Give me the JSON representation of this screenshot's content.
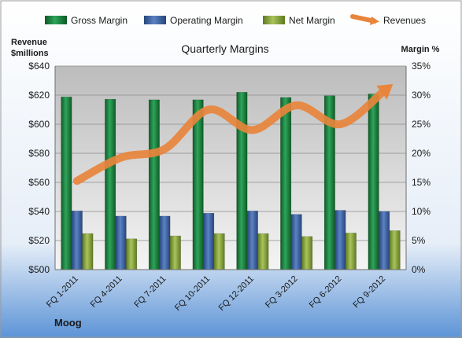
{
  "chart_data": {
    "type": "bar",
    "title": "Quarterly Margins",
    "company": "Moog",
    "left_axis_label": [
      "Revenue",
      "$millions"
    ],
    "right_axis_label": "Margin %",
    "categories": [
      "FQ 1-2011",
      "FQ 4-2011",
      "FQ 7-2011",
      "FQ 10-2011",
      "FQ 12-2011",
      "FQ 3-2012",
      "FQ 6-2012",
      "FQ 9-2012"
    ],
    "left_ticks": [
      "$500",
      "$520",
      "$540",
      "$560",
      "$580",
      "$600",
      "$620",
      "$640"
    ],
    "right_ticks": [
      "0%",
      "5%",
      "10%",
      "15%",
      "20%",
      "25%",
      "30%",
      "35%"
    ],
    "left_range": [
      500,
      640
    ],
    "right_range": [
      0,
      35
    ],
    "legend_position": "top",
    "grid": true,
    "series": [
      {
        "name": "Gross Margin",
        "axis": "right",
        "color": "#1a7a3a",
        "values": [
          29.7,
          29.3,
          29.2,
          29.2,
          30.5,
          29.6,
          29.9,
          30.2
        ]
      },
      {
        "name": "Operating Margin",
        "axis": "right",
        "color": "#3a5fa0",
        "values": [
          10.1,
          9.2,
          9.2,
          9.7,
          10.1,
          9.5,
          10.2,
          10.0
        ]
      },
      {
        "name": "Net Margin",
        "axis": "right",
        "color": "#8aa83c",
        "values": [
          6.2,
          5.3,
          5.8,
          6.2,
          6.2,
          5.7,
          6.3,
          6.7
        ]
      },
      {
        "name": "Revenues",
        "axis": "left",
        "color": "#e8843c",
        "type": "line",
        "values": [
          561,
          577,
          583,
          610,
          596,
          613,
          600,
          623
        ]
      }
    ]
  }
}
